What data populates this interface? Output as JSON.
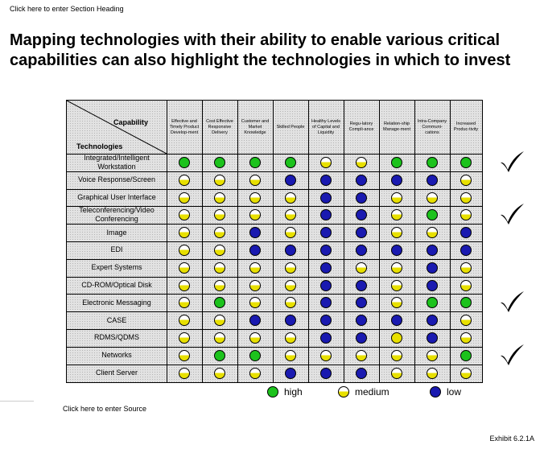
{
  "section_heading": "Click here to enter Section Heading",
  "title": "Mapping technologies with their ability to enable various critical capabilities can also highlight the technologies in which to invest",
  "matrix": {
    "capability_label": "Capability",
    "technologies_label": "Technologies",
    "columns": [
      "Effective and Timely Product Develop-ment",
      "Cost Effective Responsive Delivery",
      "Customer and Market Knowledge",
      "Skilled People",
      "Healthy Levels of Capital and Liquidity",
      "Regu-latory Compli-ance",
      "Relation-ship Manage-ment",
      "Intra-Company Communi-cations",
      "Increased Produc-tivity"
    ],
    "rows": [
      {
        "label": "Integrated/Intelligent Workstation",
        "values": [
          "high",
          "high",
          "high",
          "high",
          "medium",
          "medium",
          "high",
          "high",
          "high"
        ],
        "checked": true
      },
      {
        "label": "Voice Response/Screen",
        "values": [
          "medium",
          "medium",
          "medium",
          "low",
          "low",
          "low",
          "low",
          "low",
          "medium"
        ],
        "checked": false
      },
      {
        "label": "Graphical User Interface",
        "values": [
          "medium",
          "medium",
          "medium",
          "medium",
          "low",
          "low",
          "medium",
          "medium",
          "medium"
        ],
        "checked": false
      },
      {
        "label": "Teleconferencing/Video Conferencing",
        "values": [
          "medium",
          "medium",
          "medium",
          "medium",
          "low",
          "low",
          "medium",
          "high",
          "medium"
        ],
        "checked": true
      },
      {
        "label": "Image",
        "values": [
          "medium",
          "medium",
          "low",
          "medium",
          "low",
          "low",
          "medium",
          "medium",
          "low"
        ],
        "checked": false
      },
      {
        "label": "EDI",
        "values": [
          "medium",
          "medium",
          "low",
          "low",
          "low",
          "low",
          "low",
          "low",
          "low"
        ],
        "checked": false
      },
      {
        "label": "Expert Systems",
        "values": [
          "medium",
          "medium",
          "medium",
          "medium",
          "low",
          "medium",
          "medium",
          "low",
          "medium"
        ],
        "checked": false
      },
      {
        "label": "CD-ROM/Optical Disk",
        "values": [
          "medium",
          "medium",
          "medium",
          "medium",
          "low",
          "low",
          "medium",
          "low",
          "medium"
        ],
        "checked": false
      },
      {
        "label": "Electronic Messaging",
        "values": [
          "medium",
          "high",
          "medium",
          "medium",
          "low",
          "low",
          "medium",
          "high",
          "high"
        ],
        "checked": true
      },
      {
        "label": "CASE",
        "values": [
          "medium",
          "medium",
          "low",
          "low",
          "low",
          "low",
          "low",
          "low",
          "medium"
        ],
        "checked": false
      },
      {
        "label": "RDMS/QDMS",
        "values": [
          "medium",
          "medium",
          "medium",
          "medium",
          "low",
          "low",
          "medium-full",
          "low",
          "medium"
        ],
        "checked": false
      },
      {
        "label": "Networks",
        "values": [
          "medium",
          "high",
          "high",
          "medium",
          "medium",
          "medium",
          "medium",
          "medium",
          "high"
        ],
        "checked": true
      },
      {
        "label": "Client Server",
        "values": [
          "medium",
          "medium",
          "medium",
          "low",
          "low",
          "low",
          "medium",
          "medium",
          "medium"
        ],
        "checked": false
      }
    ]
  },
  "legend": {
    "high": "high",
    "medium": "medium",
    "low": "low"
  },
  "source": "Click here to enter Source",
  "exhibit": "Exhibit 6.2.1A"
}
